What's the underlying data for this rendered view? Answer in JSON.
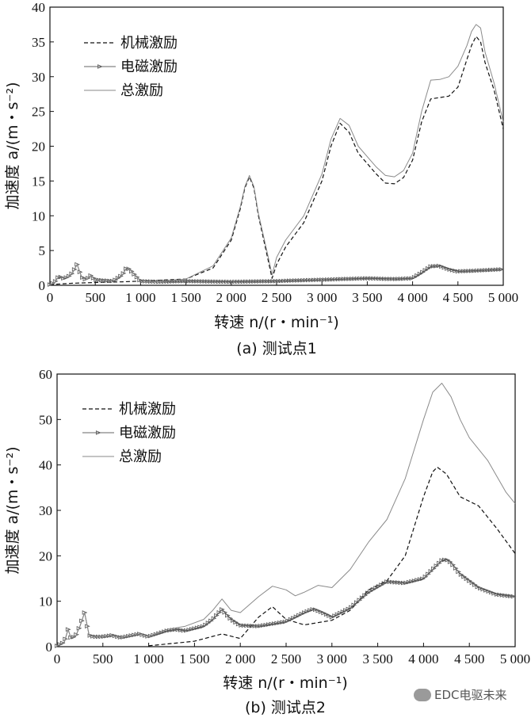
{
  "chart_data": [
    {
      "type": "line",
      "caption": "(a) 测试点1",
      "xlabel": "转速 n/(r・min⁻¹)",
      "ylabel": "加速度 a/(m・s⁻²)",
      "xlim": [
        0,
        5000
      ],
      "ylim": [
        0,
        40
      ],
      "xticks": [
        0,
        500,
        1000,
        1500,
        2000,
        2500,
        3000,
        3500,
        4000,
        4500,
        5000
      ],
      "xtick_labels": [
        "0",
        "500",
        "1 000",
        "1 500",
        "2 000",
        "2 500",
        "3 000",
        "3 500",
        "4 000",
        "4 500",
        "5 000"
      ],
      "yticks": [
        0,
        5,
        10,
        15,
        20,
        25,
        30,
        35,
        40
      ],
      "ytick_labels": [
        "0",
        "5",
        "10",
        "15",
        "20",
        "25",
        "30",
        "35",
        "40"
      ],
      "legend": [
        "机械激励",
        "电磁激励",
        "总激励"
      ],
      "series": [
        {
          "name": "机械激励",
          "style": "dashed",
          "x": [
            0,
            250,
            500,
            800,
            1000,
            1500,
            1800,
            2000,
            2100,
            2150,
            2200,
            2250,
            2300,
            2400,
            2450,
            2500,
            2600,
            2800,
            3000,
            3100,
            3200,
            3300,
            3400,
            3500,
            3600,
            3700,
            3800,
            3900,
            4000,
            4100,
            4200,
            4300,
            4400,
            4500,
            4600,
            4650,
            4700,
            4750,
            4800,
            4900,
            5000
          ],
          "y": [
            0.1,
            0.3,
            0.4,
            0.5,
            0.6,
            0.9,
            2.5,
            6.5,
            11.0,
            14.0,
            15.6,
            14.0,
            10.0,
            4.0,
            1.0,
            3.0,
            5.5,
            9.0,
            15.0,
            20.0,
            23.3,
            22.0,
            19.0,
            17.5,
            16.0,
            14.7,
            14.6,
            15.5,
            18.0,
            23.5,
            26.8,
            27.0,
            27.2,
            28.5,
            32.5,
            34.5,
            35.8,
            35.0,
            32.0,
            28.0,
            22.5
          ]
        },
        {
          "name": "电磁激励",
          "style": "solid-triangle-markers",
          "x": [
            0,
            50,
            100,
            150,
            200,
            250,
            300,
            350,
            400,
            450,
            500,
            600,
            700,
            800,
            850,
            900,
            1000,
            1200,
            1500,
            2000,
            2500,
            3000,
            3500,
            3800,
            4000,
            4100,
            4200,
            4300,
            4400,
            4500,
            4700,
            5000
          ],
          "y": [
            0.1,
            0.4,
            1.3,
            1.0,
            1.2,
            1.8,
            3.0,
            1.2,
            0.8,
            1.4,
            0.8,
            0.7,
            0.6,
            1.5,
            2.6,
            2.0,
            0.6,
            0.5,
            0.6,
            0.5,
            0.6,
            0.8,
            1.0,
            0.9,
            1.0,
            1.8,
            2.7,
            2.8,
            2.3,
            2.0,
            2.1,
            2.3
          ]
        },
        {
          "name": "总激励",
          "style": "solid",
          "x": [
            0,
            50,
            100,
            150,
            200,
            250,
            300,
            350,
            400,
            450,
            500,
            600,
            700,
            800,
            850,
            900,
            1000,
            1200,
            1500,
            1800,
            2000,
            2100,
            2150,
            2200,
            2250,
            2300,
            2400,
            2450,
            2500,
            2600,
            2800,
            3000,
            3100,
            3200,
            3300,
            3400,
            3500,
            3600,
            3700,
            3800,
            3900,
            4000,
            4100,
            4200,
            4300,
            4400,
            4500,
            4600,
            4650,
            4700,
            4750,
            4800,
            4900,
            5000
          ],
          "y": [
            0.1,
            0.4,
            1.3,
            1.0,
            1.2,
            1.8,
            3.0,
            1.2,
            0.8,
            1.4,
            0.8,
            0.7,
            0.6,
            1.5,
            2.6,
            2.0,
            0.6,
            0.5,
            0.9,
            2.8,
            6.8,
            11.3,
            14.2,
            15.8,
            14.2,
            10.3,
            4.5,
            1.5,
            4.0,
            6.5,
            10.0,
            16.0,
            21.0,
            24.0,
            23.0,
            20.0,
            18.5,
            17.0,
            15.8,
            15.6,
            16.5,
            19.0,
            25.0,
            29.5,
            29.6,
            30.0,
            31.5,
            34.5,
            36.5,
            37.5,
            37.0,
            33.5,
            29.0,
            23.5
          ]
        }
      ]
    },
    {
      "type": "line",
      "caption": "(b) 测试点2",
      "xlabel": "转速 n/(r・min⁻¹)",
      "ylabel": "加速度 a/(m・s⁻²)",
      "xlim": [
        0,
        5000
      ],
      "ylim": [
        0,
        60
      ],
      "xticks": [
        0,
        500,
        1000,
        1500,
        2000,
        2500,
        3000,
        3500,
        4000,
        4500,
        5000
      ],
      "xtick_labels": [
        "0",
        "500",
        "1 000",
        "1 500",
        "2 000",
        "2 500",
        "3 000",
        "3 500",
        "4 000",
        "4 500",
        "5 000"
      ],
      "yticks": [
        0,
        10,
        20,
        30,
        40,
        50,
        60
      ],
      "ytick_labels": [
        "0",
        "10",
        "20",
        "30",
        "40",
        "50",
        "60"
      ],
      "legend": [
        "机械激励",
        "电磁激励",
        "总激励"
      ],
      "series": [
        {
          "name": "机械激励",
          "style": "dashed",
          "x": [
            1000,
            1200,
            1500,
            1800,
            2000,
            2200,
            2350,
            2500,
            2700,
            3000,
            3200,
            3400,
            3600,
            3800,
            4000,
            4100,
            4150,
            4250,
            4400,
            4600,
            4800,
            5000
          ],
          "y": [
            0.2,
            0.6,
            1.2,
            2.8,
            1.8,
            6.5,
            8.8,
            6.0,
            4.8,
            5.8,
            8.0,
            12.5,
            14.5,
            20.0,
            33.0,
            38.5,
            39.5,
            38.0,
            33.0,
            31.0,
            26.0,
            20.5
          ]
        },
        {
          "name": "电磁激励",
          "style": "solid-triangle-markers",
          "x": [
            0,
            80,
            120,
            150,
            200,
            250,
            300,
            350,
            400,
            500,
            600,
            700,
            900,
            1000,
            1200,
            1300,
            1400,
            1500,
            1600,
            1700,
            1800,
            1900,
            2000,
            2200,
            2500,
            2700,
            2800,
            2900,
            3000,
            3200,
            3400,
            3600,
            3800,
            4000,
            4100,
            4200,
            4250,
            4300,
            4400,
            4600,
            4800,
            5000
          ],
          "y": [
            0.2,
            1.0,
            3.8,
            2.0,
            2.2,
            4.5,
            7.5,
            2.5,
            2.2,
            2.2,
            2.5,
            2.0,
            2.8,
            2.2,
            3.5,
            3.8,
            3.5,
            4.0,
            4.5,
            6.0,
            8.2,
            6.0,
            4.7,
            4.5,
            5.5,
            7.5,
            8.3,
            7.5,
            6.5,
            8.5,
            12.0,
            14.3,
            14.0,
            15.0,
            17.0,
            19.0,
            19.2,
            18.5,
            16.0,
            13.0,
            11.5,
            11.0
          ]
        },
        {
          "name": "总激励",
          "style": "solid",
          "x": [
            0,
            80,
            120,
            150,
            200,
            250,
            300,
            350,
            400,
            500,
            600,
            700,
            900,
            1000,
            1200,
            1400,
            1600,
            1700,
            1800,
            1900,
            2000,
            2200,
            2350,
            2500,
            2600,
            2700,
            2850,
            3000,
            3200,
            3400,
            3600,
            3800,
            4000,
            4100,
            4200,
            4300,
            4400,
            4500,
            4700,
            4900,
            5000
          ],
          "y": [
            0.2,
            1.0,
            3.8,
            2.0,
            2.2,
            4.5,
            7.5,
            2.5,
            2.2,
            2.2,
            2.5,
            2.0,
            2.8,
            2.2,
            3.8,
            4.5,
            6.0,
            8.0,
            10.5,
            8.0,
            7.5,
            11.0,
            13.3,
            12.5,
            11.2,
            12.0,
            13.5,
            13.0,
            17.0,
            23.0,
            28.0,
            37.0,
            50.0,
            56.0,
            58.0,
            55.0,
            50.0,
            46.0,
            41.0,
            34.0,
            31.5
          ]
        }
      ]
    }
  ],
  "watermark": {
    "text": "EDC电驱未来",
    "icon": "wechat-bubble-icon"
  }
}
